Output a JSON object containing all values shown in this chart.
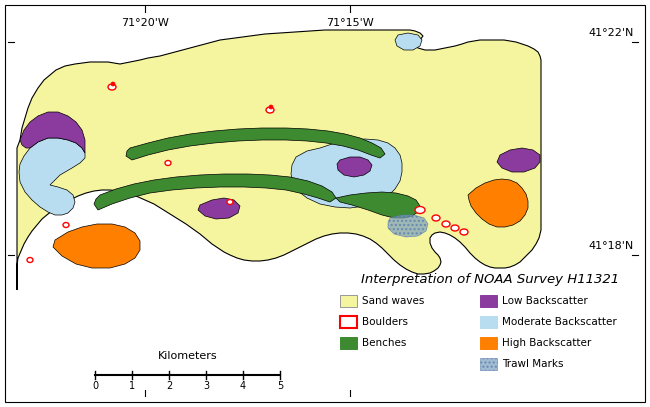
{
  "title": "Interpretation of NOAA Survey H11321",
  "title_fontsize": 9.5,
  "coord_labels": {
    "top_left": "71°20'W",
    "top_center": "71°15'W",
    "top_right": "41°22'N",
    "bottom_right": "41°18'N"
  },
  "colors": {
    "sand_waves": "#F5F5A0",
    "low_bs": "#8B3A9E",
    "mod_bs": "#B8DCF0",
    "high_bs": "#FF8000",
    "benches": "#3D8A30",
    "trawl": "#7A9FBF",
    "boulder_edge": "#FF0000",
    "boulder_fill": "#FFFFFF",
    "red_dot": "#FF0000",
    "background": "#FFFFFF",
    "border": "#000000",
    "map_edge": "#000000"
  },
  "fig_width": 6.5,
  "fig_height": 4.07,
  "dpi": 100
}
